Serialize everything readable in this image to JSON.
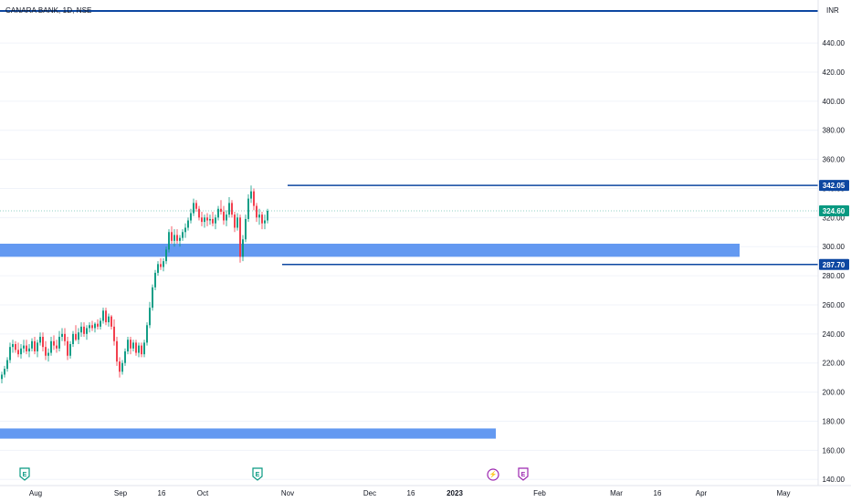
{
  "symbol": "CANARA BANK, 1D, NSE",
  "currency": "INR",
  "chart_data": {
    "type": "candlestick",
    "y_ticks": [
      140,
      160,
      180,
      200,
      220,
      240,
      260,
      280,
      300,
      320,
      340,
      360,
      380,
      400,
      420,
      440
    ],
    "x_ticks": [
      {
        "label": "Aug",
        "day": 13
      },
      {
        "label": "Sep",
        "day": 44
      },
      {
        "label": "16",
        "day": 59
      },
      {
        "label": "Oct",
        "day": 74
      },
      {
        "label": "Nov",
        "day": 105
      },
      {
        "label": "Dec",
        "day": 135
      },
      {
        "label": "16",
        "day": 150
      },
      {
        "label": "2023",
        "day": 166
      },
      {
        "label": "Feb",
        "day": 197
      },
      {
        "label": "Mar",
        "day": 225
      },
      {
        "label": "16",
        "day": 240
      },
      {
        "label": "Apr",
        "day": 256
      },
      {
        "label": "May",
        "day": 286
      }
    ],
    "ylim": [
      137,
      462
    ],
    "xlim": [
      0,
      298
    ],
    "last_price": "324.60",
    "levels": [
      {
        "label": "342.05",
        "value": 342.05,
        "start_day": 105,
        "color": "#0d47a1"
      },
      {
        "label": "287.70",
        "value": 287.7,
        "start_day": 103,
        "color": "#0d47a1"
      }
    ],
    "top_line": {
      "value": 462,
      "color": "#0d47a1"
    },
    "zones": [
      {
        "from": 293,
        "to": 302,
        "start_day": 0,
        "end_day": 270,
        "color": "#5b94f0"
      },
      {
        "from": 168,
        "to": 175,
        "start_day": 0,
        "end_day": 181,
        "color": "#5b94f0"
      }
    ],
    "event_markers": [
      {
        "label": "E",
        "day": 9,
        "color": "#089981"
      },
      {
        "label": "E",
        "day": 94,
        "color": "#089981"
      },
      {
        "label": "⚡",
        "day": 180,
        "color": "#9c27b0"
      },
      {
        "label": "E",
        "day": 191,
        "color": "#9c27b0"
      }
    ],
    "candles": [
      [
        209,
        214,
        206,
        212
      ],
      [
        212,
        218,
        210,
        216
      ],
      [
        216,
        224,
        214,
        222
      ],
      [
        222,
        234,
        220,
        231
      ],
      [
        231,
        236,
        227,
        233
      ],
      [
        233,
        235,
        227,
        229
      ],
      [
        229,
        234,
        224,
        226
      ],
      [
        226,
        233,
        223,
        230
      ],
      [
        230,
        236,
        227,
        232
      ],
      [
        232,
        236,
        226,
        228
      ],
      [
        228,
        233,
        224,
        230
      ],
      [
        230,
        237,
        228,
        235
      ],
      [
        235,
        238,
        226,
        228
      ],
      [
        228,
        236,
        224,
        234
      ],
      [
        234,
        241,
        232,
        238
      ],
      [
        238,
        241,
        228,
        231
      ],
      [
        231,
        235,
        222,
        225
      ],
      [
        225,
        230,
        221,
        227
      ],
      [
        227,
        238,
        225,
        235
      ],
      [
        235,
        239,
        229,
        232
      ],
      [
        232,
        236,
        227,
        230
      ],
      [
        230,
        242,
        228,
        238
      ],
      [
        238,
        244,
        235,
        240
      ],
      [
        240,
        244,
        232,
        235
      ],
      [
        235,
        238,
        222,
        225
      ],
      [
        225,
        235,
        223,
        233
      ],
      [
        233,
        242,
        231,
        240
      ],
      [
        240,
        246,
        235,
        236
      ],
      [
        236,
        244,
        233,
        241
      ],
      [
        241,
        248,
        238,
        245
      ],
      [
        245,
        248,
        238,
        240
      ],
      [
        240,
        246,
        236,
        244
      ],
      [
        244,
        248,
        241,
        246
      ],
      [
        246,
        249,
        242,
        244
      ],
      [
        244,
        248,
        241,
        247
      ],
      [
        247,
        250,
        243,
        245
      ],
      [
        245,
        251,
        243,
        249
      ],
      [
        249,
        258,
        247,
        256
      ],
      [
        256,
        258,
        246,
        248
      ],
      [
        248,
        254,
        245,
        252
      ],
      [
        252,
        253,
        243,
        245
      ],
      [
        245,
        250,
        232,
        235
      ],
      [
        235,
        238,
        218,
        221
      ],
      [
        221,
        224,
        210,
        214
      ],
      [
        214,
        222,
        212,
        220
      ],
      [
        220,
        230,
        218,
        228
      ],
      [
        228,
        238,
        226,
        236
      ],
      [
        236,
        238,
        226,
        230
      ],
      [
        230,
        236,
        228,
        234
      ],
      [
        234,
        236,
        225,
        227
      ],
      [
        227,
        234,
        224,
        232
      ],
      [
        232,
        234,
        224,
        226
      ],
      [
        226,
        236,
        224,
        234
      ],
      [
        234,
        248,
        232,
        246
      ],
      [
        246,
        262,
        244,
        258
      ],
      [
        258,
        274,
        256,
        272
      ],
      [
        272,
        284,
        270,
        282
      ],
      [
        282,
        290,
        280,
        288
      ],
      [
        288,
        292,
        284,
        286
      ],
      [
        286,
        292,
        283,
        290
      ],
      [
        290,
        300,
        288,
        298
      ],
      [
        298,
        312,
        296,
        310
      ],
      [
        310,
        314,
        302,
        304
      ],
      [
        304,
        312,
        300,
        308
      ],
      [
        308,
        312,
        302,
        304
      ],
      [
        304,
        308,
        300,
        306
      ],
      [
        306,
        312,
        304,
        310
      ],
      [
        310,
        316,
        306,
        313
      ],
      [
        313,
        320,
        311,
        318
      ],
      [
        318,
        326,
        316,
        323
      ],
      [
        323,
        333,
        321,
        330
      ],
      [
        330,
        332,
        324,
        326
      ],
      [
        326,
        328,
        318,
        320
      ],
      [
        320,
        324,
        314,
        317
      ],
      [
        317,
        322,
        313,
        320
      ],
      [
        320,
        323,
        314,
        318
      ],
      [
        318,
        322,
        315,
        319
      ],
      [
        319,
        324,
        314,
        316
      ],
      [
        316,
        322,
        312,
        320
      ],
      [
        320,
        328,
        318,
        326
      ],
      [
        326,
        332,
        322,
        324
      ],
      [
        324,
        328,
        315,
        318
      ],
      [
        318,
        325,
        314,
        322
      ],
      [
        322,
        334,
        320,
        330
      ],
      [
        330,
        332,
        320,
        322
      ],
      [
        322,
        324,
        310,
        313
      ],
      [
        313,
        323,
        311,
        320
      ],
      [
        320,
        322,
        289,
        293
      ],
      [
        293,
        308,
        290,
        305
      ],
      [
        305,
        322,
        303,
        319
      ],
      [
        319,
        336,
        317,
        333
      ],
      [
        333,
        342,
        330,
        338
      ],
      [
        338,
        340,
        325,
        328
      ],
      [
        328,
        330,
        317,
        320
      ],
      [
        320,
        326,
        315,
        322
      ],
      [
        322,
        324,
        312,
        316
      ],
      [
        316,
        322,
        312,
        318
      ],
      [
        318,
        326,
        316,
        324.6
      ]
    ]
  }
}
